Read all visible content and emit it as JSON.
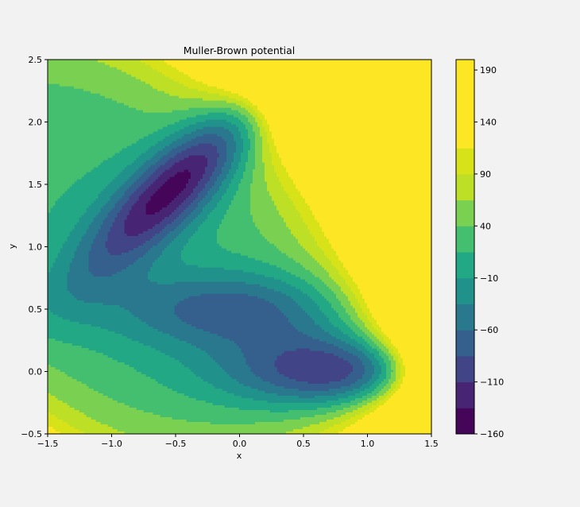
{
  "chart_data": {
    "type": "contourf",
    "title": "Muller-Brown potential",
    "xlabel": "x",
    "ylabel": "y",
    "xlim": [
      -1.5,
      1.5
    ],
    "ylim": [
      -0.5,
      2.5
    ],
    "x_ticks": [
      -1.5,
      -1.0,
      -0.5,
      0.0,
      0.5,
      1.0,
      1.5
    ],
    "x_tick_labels": [
      "−1.5",
      "−1.0",
      "−0.5",
      "0.0",
      "0.5",
      "1.0",
      "1.5"
    ],
    "y_ticks": [
      -0.5,
      0.0,
      0.5,
      1.0,
      1.5,
      2.0,
      2.5
    ],
    "y_tick_labels": [
      "−0.5",
      "0.0",
      "0.5",
      "1.0",
      "1.5",
      "2.0",
      "2.5"
    ],
    "grid": false,
    "function": "muller_brown",
    "colorbar": {
      "colormap": "viridis",
      "vmin": -160,
      "vmax": 200,
      "levels": [
        -160,
        -135,
        -110,
        -85,
        -60,
        -35,
        -10,
        15,
        40,
        65,
        90,
        115,
        140,
        165,
        190,
        200
      ],
      "ticks": [
        -160,
        -110,
        -60,
        -10,
        40,
        90,
        140,
        190
      ],
      "tick_labels": [
        "−160",
        "−110",
        "−60",
        "−10",
        "40",
        "90",
        "140",
        "190"
      ],
      "band_colors": [
        "#450559",
        "#482475",
        "#414487",
        "#355f8d",
        "#2a788e",
        "#21918c",
        "#22a884",
        "#44bf70",
        "#7ad151",
        "#bddf26",
        "#d8e219",
        "#fde725",
        "#fde725",
        "#fde725",
        "#fde725"
      ]
    }
  }
}
